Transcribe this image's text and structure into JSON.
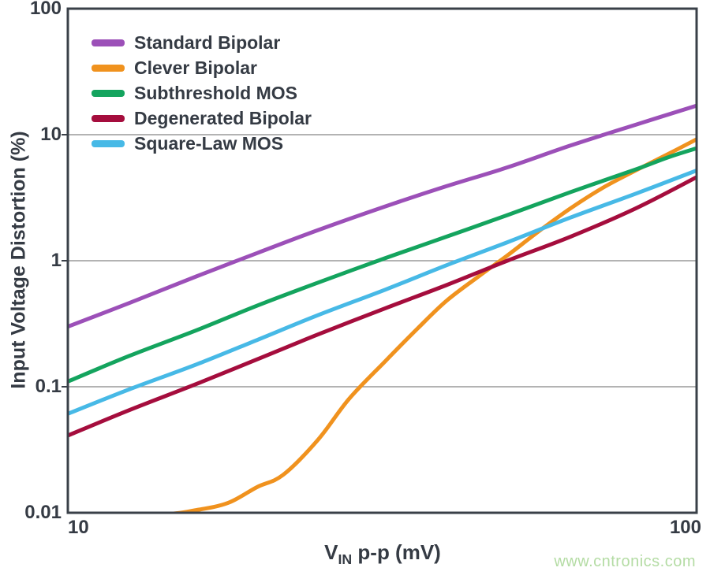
{
  "watermark": {
    "text": "www.cntronics.com",
    "color": "#b4dca4"
  },
  "chart_data": {
    "type": "line",
    "scale": "log-log",
    "title": "",
    "ylabel": "Input Voltage Distortion (%)",
    "xlabel": {
      "main": "V",
      "sub": "IN",
      "rest": " p-p (mV)"
    },
    "xlim": [
      10,
      100
    ],
    "ylim": [
      0.01,
      100
    ],
    "grid": "horizontal-only",
    "gridlines_y": [
      10,
      1,
      0.1
    ],
    "legend_position": "top-left-inside",
    "axis_color": "#3a4048",
    "gridline_color": "#9a9a9a",
    "text_color": "#353b44",
    "xticks": [
      {
        "value": 10,
        "label": "10"
      },
      {
        "value": 100,
        "label": "100"
      }
    ],
    "yticks": [
      {
        "value": 100,
        "label": "100"
      },
      {
        "value": 10,
        "label": "10"
      },
      {
        "value": 1,
        "label": "1"
      },
      {
        "value": 0.1,
        "label": "0.1"
      },
      {
        "value": 0.01,
        "label": "0.01"
      }
    ],
    "series": [
      {
        "name": "Standard Bipolar",
        "color": "#9c50b8",
        "points": [
          [
            10,
            0.3
          ],
          [
            12.5,
            0.46
          ],
          [
            16,
            0.75
          ],
          [
            20,
            1.15
          ],
          [
            25,
            1.75
          ],
          [
            32,
            2.7
          ],
          [
            40,
            3.9
          ],
          [
            50,
            5.5
          ],
          [
            63,
            8.2
          ],
          [
            80,
            12
          ],
          [
            100,
            17
          ]
        ]
      },
      {
        "name": "Clever Bipolar",
        "color": "#f0921e",
        "points": [
          [
            10,
            0.0095
          ],
          [
            14,
            0.0097
          ],
          [
            16,
            0.0105
          ],
          [
            18,
            0.012
          ],
          [
            20,
            0.016
          ],
          [
            22,
            0.02
          ],
          [
            25,
            0.038
          ],
          [
            28,
            0.08
          ],
          [
            32,
            0.16
          ],
          [
            36,
            0.29
          ],
          [
            40,
            0.48
          ],
          [
            45,
            0.75
          ],
          [
            50,
            1.1
          ],
          [
            56,
            1.7
          ],
          [
            63,
            2.6
          ],
          [
            71,
            3.8
          ],
          [
            80,
            5.2
          ],
          [
            90,
            7.0
          ],
          [
            100,
            9.2
          ]
        ]
      },
      {
        "name": "Subthreshold MOS",
        "color": "#14a45e",
        "points": [
          [
            10,
            0.11
          ],
          [
            12.5,
            0.175
          ],
          [
            16,
            0.28
          ],
          [
            20,
            0.44
          ],
          [
            25,
            0.67
          ],
          [
            32,
            1.05
          ],
          [
            40,
            1.55
          ],
          [
            50,
            2.3
          ],
          [
            63,
            3.5
          ],
          [
            80,
            5.3
          ],
          [
            90,
            6.6
          ],
          [
            100,
            7.8
          ]
        ]
      },
      {
        "name": "Degenerated Bipolar",
        "color": "#a50d3d",
        "points": [
          [
            10,
            0.041
          ],
          [
            12.5,
            0.065
          ],
          [
            16,
            0.105
          ],
          [
            20,
            0.165
          ],
          [
            25,
            0.26
          ],
          [
            32,
            0.42
          ],
          [
            40,
            0.64
          ],
          [
            50,
            1.0
          ],
          [
            63,
            1.55
          ],
          [
            80,
            2.6
          ],
          [
            100,
            4.6
          ]
        ]
      },
      {
        "name": "Square-Law MOS",
        "color": "#47b9e6",
        "points": [
          [
            10,
            0.061
          ],
          [
            12.5,
            0.095
          ],
          [
            16,
            0.15
          ],
          [
            20,
            0.235
          ],
          [
            25,
            0.37
          ],
          [
            32,
            0.59
          ],
          [
            40,
            0.92
          ],
          [
            50,
            1.4
          ],
          [
            63,
            2.2
          ],
          [
            80,
            3.4
          ],
          [
            100,
            5.2
          ]
        ]
      }
    ]
  }
}
